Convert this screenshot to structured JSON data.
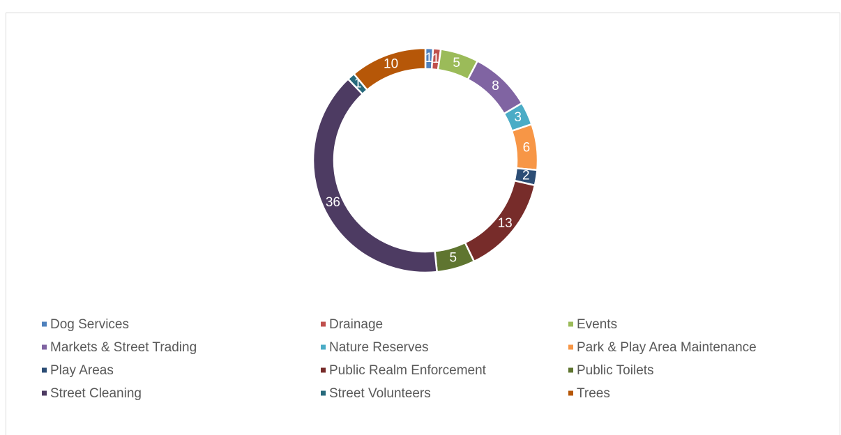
{
  "chart_data": {
    "type": "donut",
    "categories": [
      "Dog Services",
      "Drainage",
      "Events",
      "Markets & Street Trading",
      "Nature Reserves",
      "Park & Play Area Maintenance",
      "Play Areas",
      "Public Realm Enforcement",
      "Public Toilets",
      "Street Cleaning",
      "Street Volunteers",
      "Trees"
    ],
    "values": [
      1,
      1,
      5,
      8,
      3,
      6,
      2,
      13,
      5,
      36,
      1,
      10
    ],
    "colors": [
      "#4f81bd",
      "#c0504d",
      "#9bbb59",
      "#8064a2",
      "#4bacc6",
      "#f79646",
      "#2c4d75",
      "#772c2a",
      "#5f7530",
      "#4d3b62",
      "#276a7c",
      "#b65708"
    ],
    "legend": "bottom"
  }
}
